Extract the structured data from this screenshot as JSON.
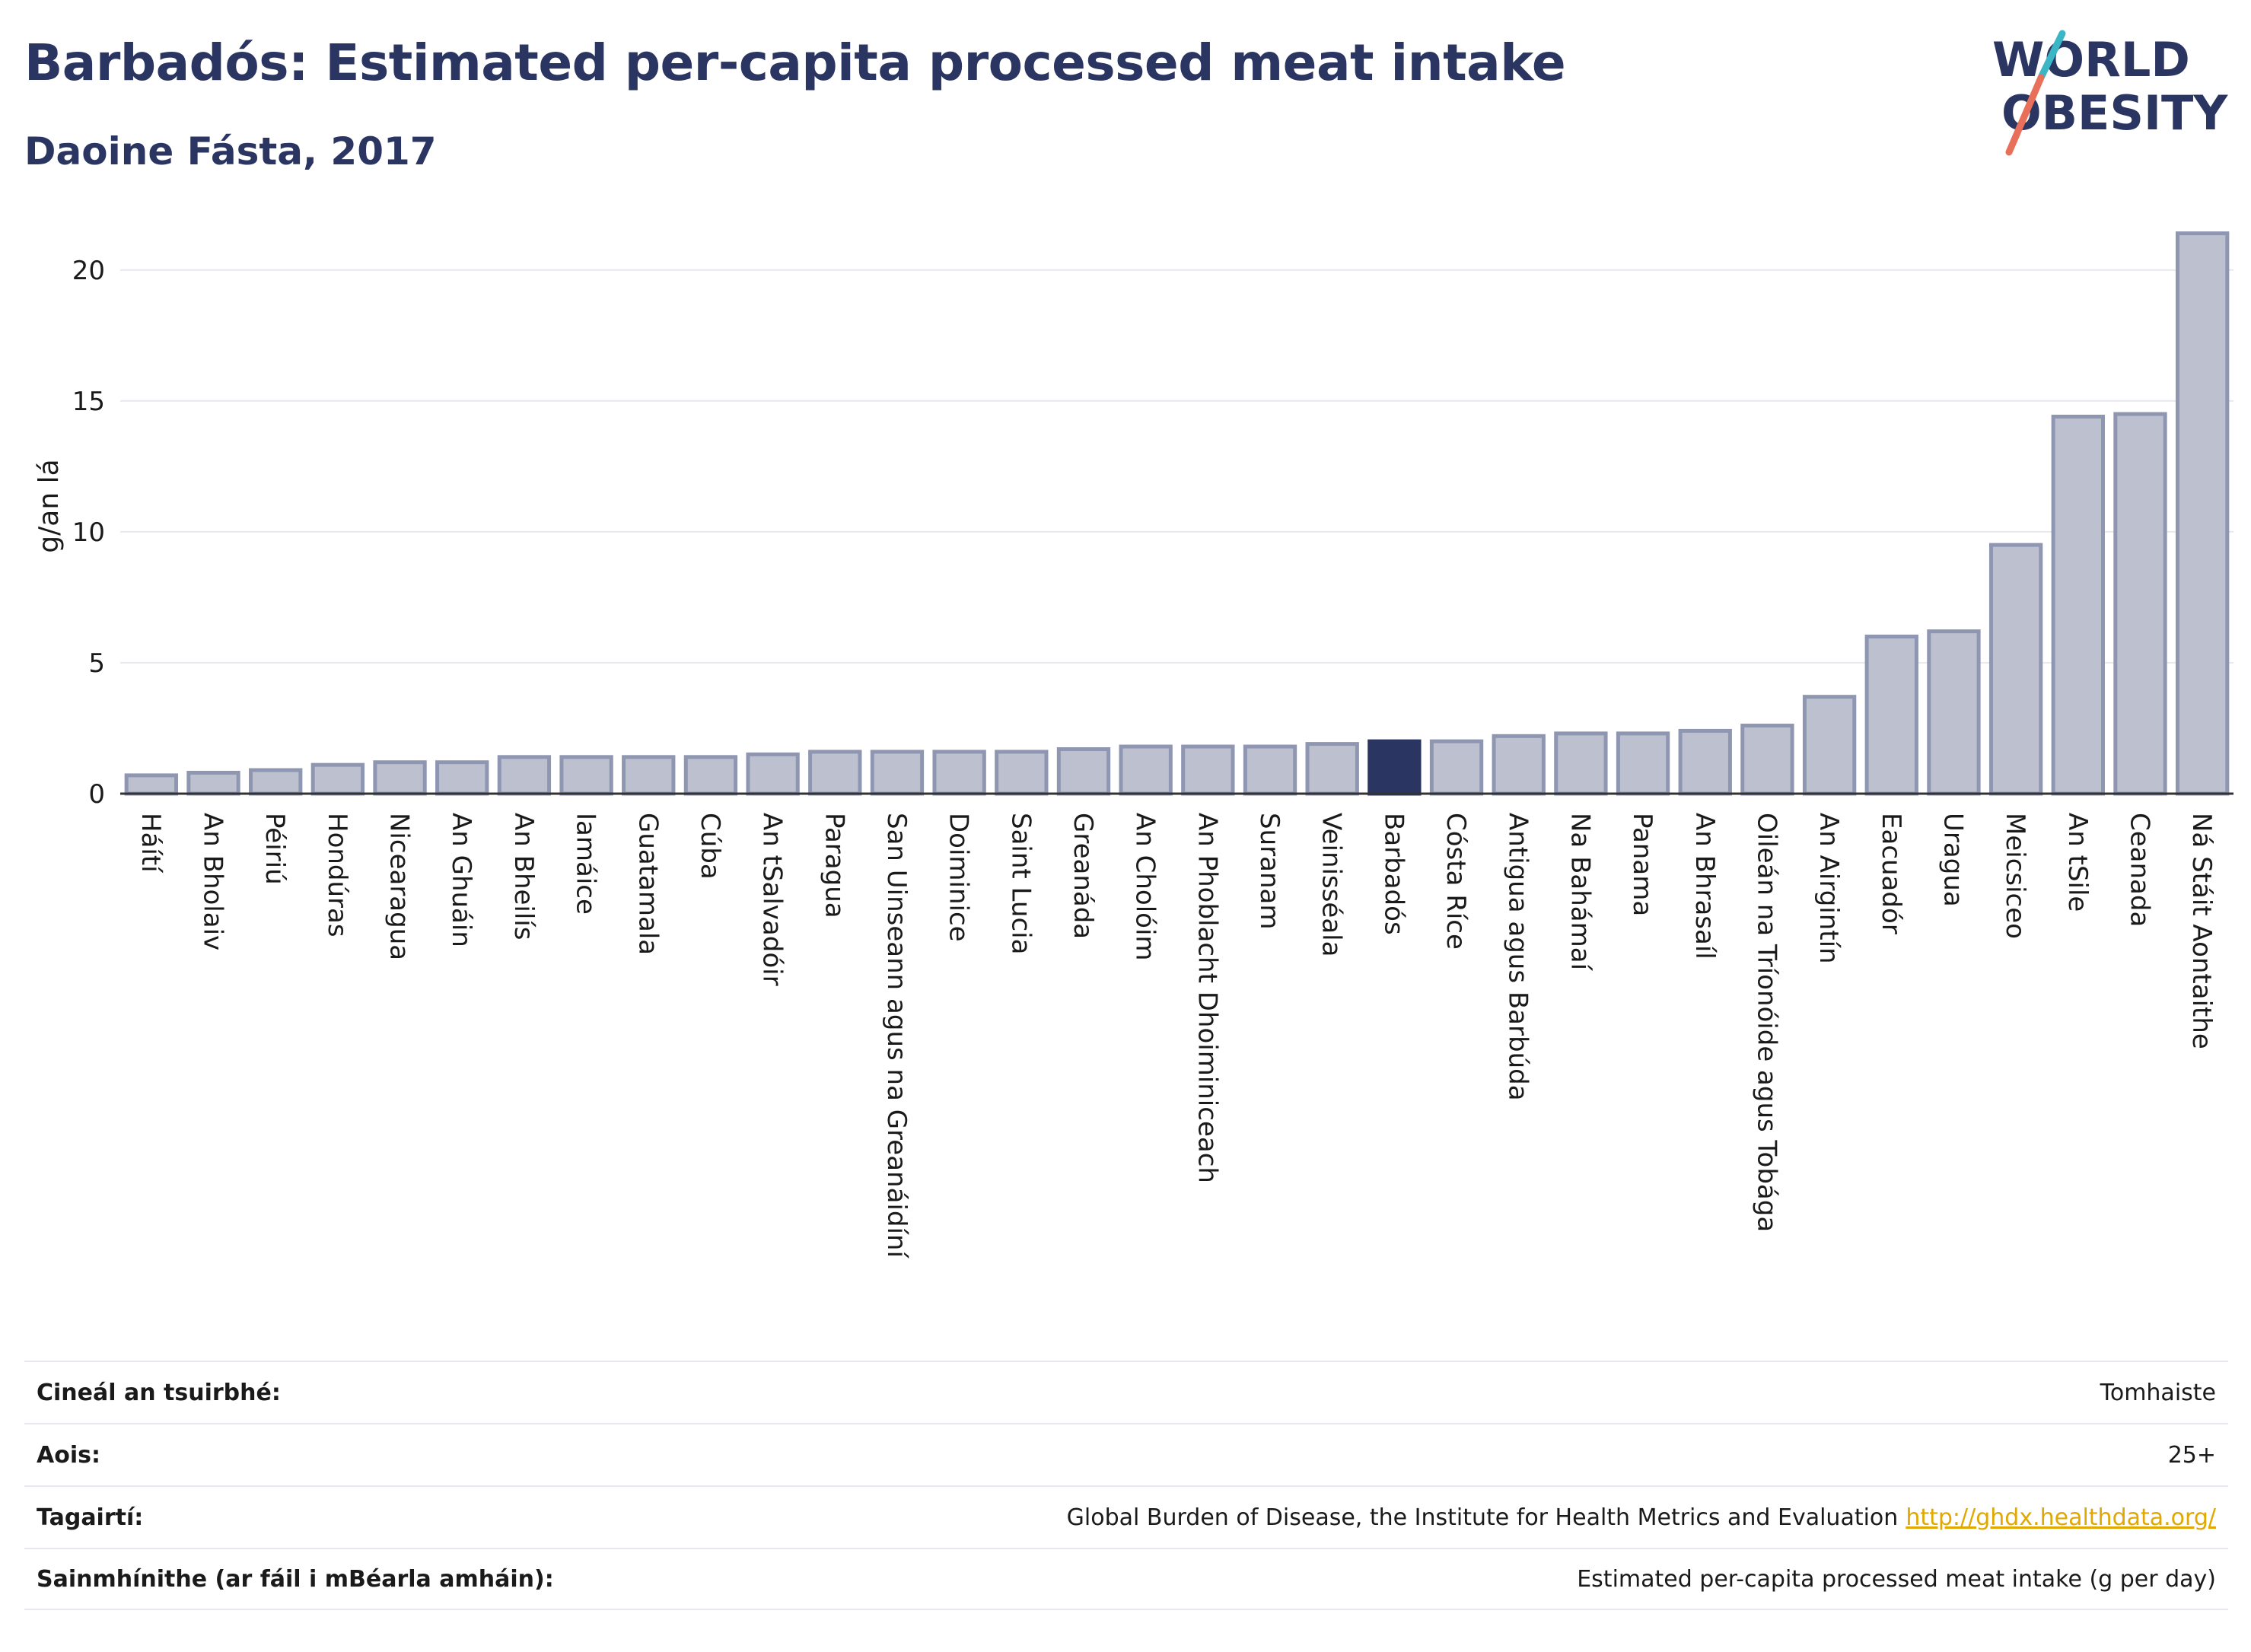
{
  "header": {
    "title": "Barbadós: Estimated per-capita processed meat intake",
    "subtitle": "Daoine Fásta, 2017"
  },
  "logo": {
    "line1": "WORLD",
    "line2": "OBESITY",
    "accent_teal": "#3bb6c4",
    "accent_coral": "#e8705a",
    "text_color": "#2b3561"
  },
  "colors": {
    "bar_fill": "#bdc1cf",
    "bar_stroke": "#8f96b2",
    "highlight_fill": "#2b3561",
    "grid": "#e6e9ee",
    "axis": "#333333"
  },
  "chart_data": {
    "type": "bar",
    "ylabel": "g/an lá",
    "ylim": [
      0,
      22
    ],
    "yticks": [
      0,
      5,
      10,
      15,
      20
    ],
    "highlight": "Barbadós",
    "categories": [
      "Háítí",
      "An Bholaiv",
      "Péiriú",
      "Hondúras",
      "Nicearagua",
      "An Ghuáin",
      "An Bheilís",
      "Iamáice",
      "Guatamala",
      "Cúba",
      "An tSalvadóir",
      "Paragua",
      "San Uinseann agus na Greanáidíní",
      "Doiminice",
      "Saint Lucia",
      "Greanáda",
      "An Cholóim",
      "An Phoblacht Dhoiminiceach",
      "Suranam",
      "Veinisséala",
      "Barbadós",
      "Cósta Ríce",
      "Antigua agus Barbúda",
      "Na Bahámaí",
      "Panama",
      "An Bhrasaíl",
      "Oileán na Tríonóide agus Tobága",
      "An Airgintín",
      "Eacuadór",
      "Uragua",
      "Meicsiceo",
      "An tSile",
      "Ceanada",
      "Ná Stáit Aontaithe"
    ],
    "values": [
      0.7,
      0.8,
      0.9,
      1.1,
      1.2,
      1.2,
      1.4,
      1.4,
      1.4,
      1.4,
      1.5,
      1.6,
      1.6,
      1.6,
      1.6,
      1.7,
      1.8,
      1.8,
      1.8,
      1.9,
      2.0,
      2.0,
      2.2,
      2.3,
      2.3,
      2.4,
      2.6,
      3.7,
      6.0,
      6.2,
      9.5,
      14.4,
      14.5,
      21.4
    ]
  },
  "info": {
    "rows": [
      {
        "key": "Cineál an tsuirbhé:",
        "value": "Tomhaiste"
      },
      {
        "key": "Aois:",
        "value": "25+"
      },
      {
        "key": "Tagairtí:",
        "value": "Global Burden of Disease, the Institute for Health Metrics and Evaluation",
        "link": "http://ghdx.healthdata.org/"
      },
      {
        "key": "Sainmhínithe (ar fáil i mBéarla amháin):",
        "value": "Estimated per-capita processed meat intake (g per day)"
      }
    ]
  }
}
